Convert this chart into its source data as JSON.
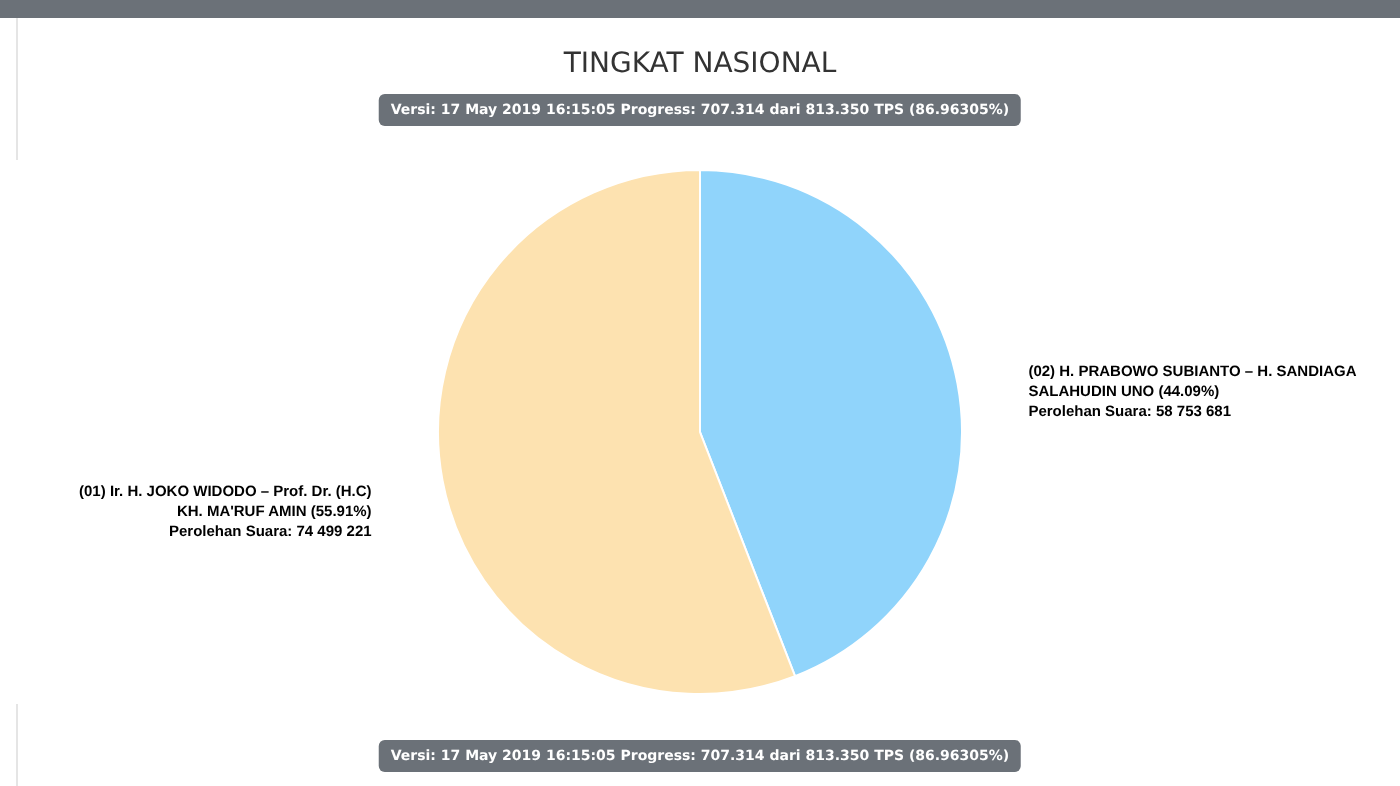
{
  "chart_data": {
    "type": "pie",
    "title": "TINGKAT NASIONAL",
    "subtitle": "Versi: 17 May 2019 16:15:05 Progress: 707.314 dari 813.350 TPS (86.96305%)",
    "annotations": [
      "Versi: 17 May 2019 16:15:05 Progress: 707.314 dari 813.350 TPS (86.96305%)"
    ],
    "categories": [
      "(02) H. PRABOWO SUBIANTO – H. SANDIAGA SALAHUDIN UNO",
      "(01) Ir. H. JOKO WIDODO – Prof. Dr. (H.C) KH. MA'RUF AMIN"
    ],
    "values": [
      58753681,
      74499221
    ],
    "value_labels": [
      "(44.09%)\nPerolehan Suara: 58 753 681",
      "(55.91%)\nPerolehan Suara: 74 499 221"
    ],
    "colors": [
      "#90d4fb",
      "#fde2b0"
    ]
  }
}
